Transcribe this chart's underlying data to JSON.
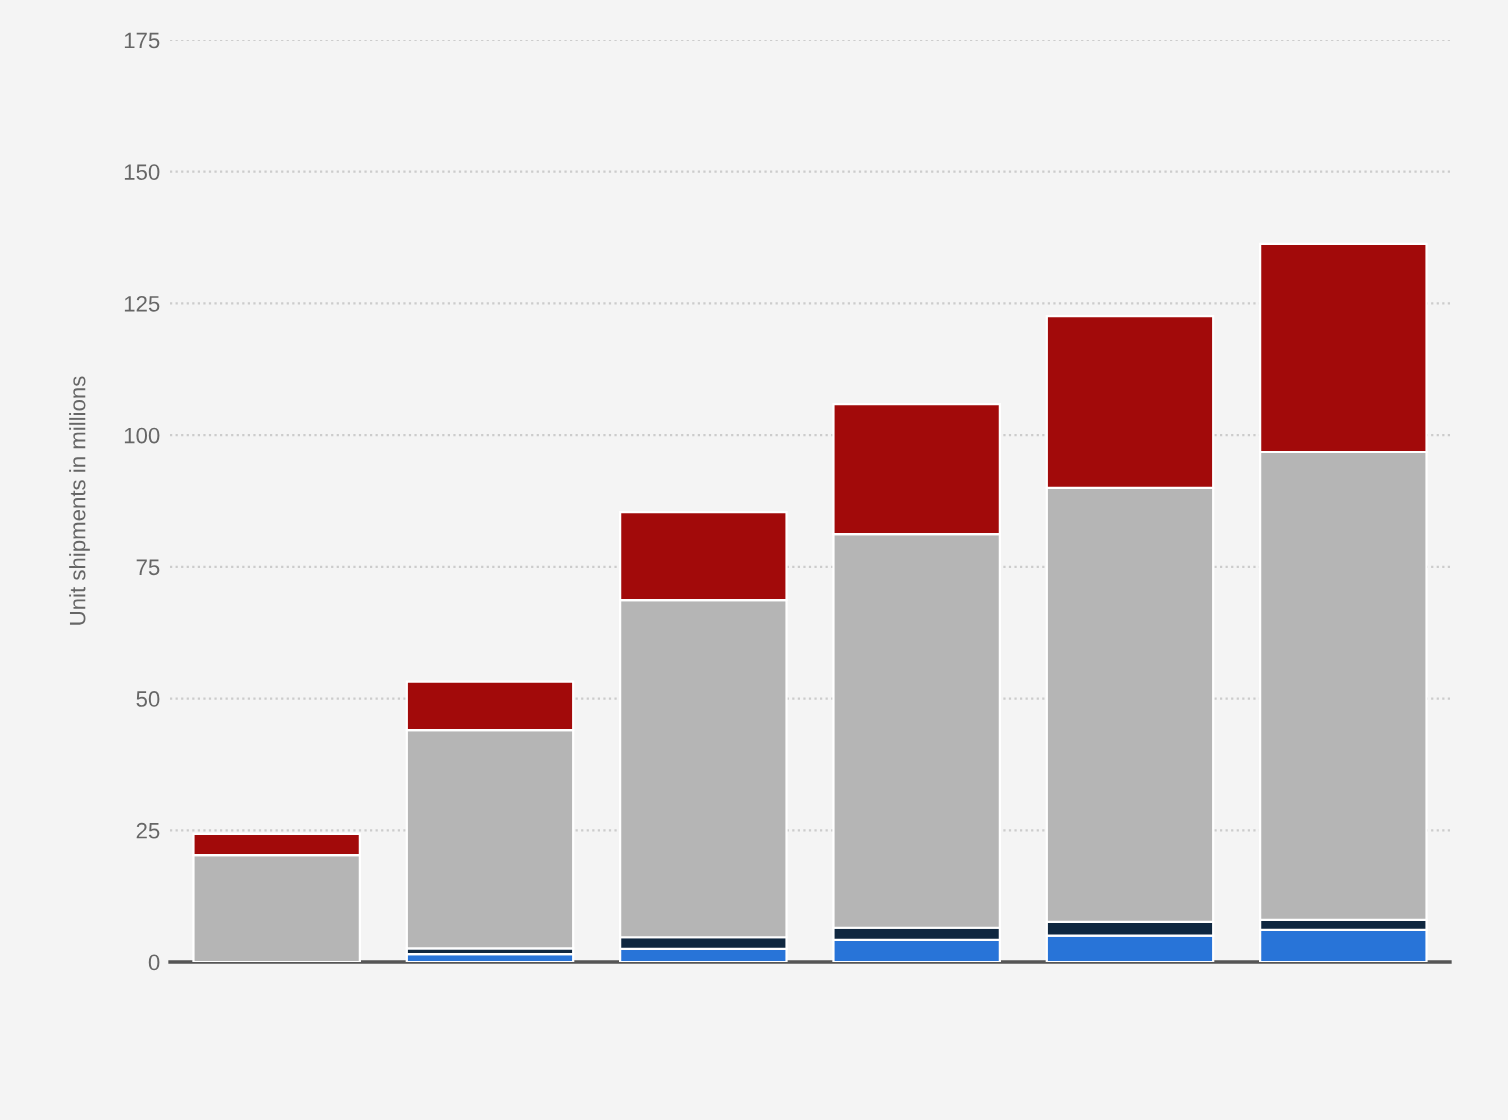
{
  "chart_data": {
    "type": "bar",
    "stacked": true,
    "ylabel": "Unit shipments in millions",
    "categories": [
      null,
      null,
      null,
      null,
      null,
      null
    ],
    "series": [
      {
        "color": "#2874d8",
        "values": [
          0,
          1.5,
          2.5,
          4.2,
          5,
          6.1
        ]
      },
      {
        "color": "#0f2740",
        "values": [
          0,
          1.1,
          2.2,
          2.3,
          2.6,
          1.9
        ]
      },
      {
        "color": "#b5b5b5",
        "values": [
          20.3,
          41.4,
          64,
          74.7,
          82.4,
          88.8
        ]
      },
      {
        "color": "#a20a0a",
        "values": [
          4,
          9.2,
          16.7,
          24.7,
          32.6,
          39.5
        ]
      }
    ],
    "ylim": [
      0,
      175
    ],
    "yticks": [
      0,
      25,
      50,
      75,
      100,
      125,
      150,
      175
    ],
    "grid": "y",
    "legend": false
  }
}
